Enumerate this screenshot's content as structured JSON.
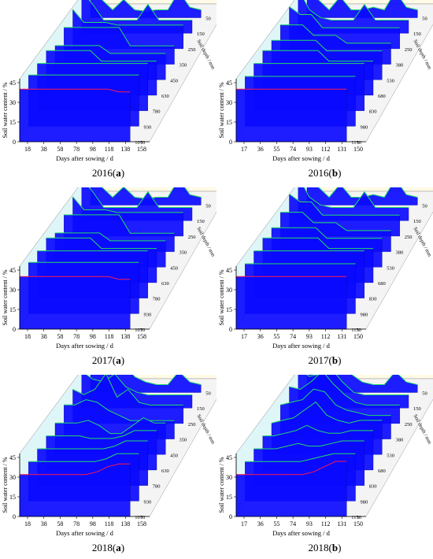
{
  "figure": {
    "panels": [
      {
        "caption_year": "2016",
        "caption_letter": "a"
      },
      {
        "caption_year": "2016",
        "caption_letter": "b"
      },
      {
        "caption_year": "2017",
        "caption_letter": "a"
      },
      {
        "caption_year": "2017",
        "caption_letter": "b"
      },
      {
        "caption_year": "2018",
        "caption_letter": "a"
      },
      {
        "caption_year": "2018",
        "caption_letter": "b"
      }
    ]
  },
  "colors": {
    "front_fill": "#0a0aff",
    "back_panel": "#fffbe6",
    "side_panel": "#dff6f8",
    "line_green": "#22dd66",
    "line_red": "#ff1a4a"
  },
  "chart_data": [
    {
      "type": "area",
      "title": "",
      "xlabel": "Days after sowing / d",
      "ylabel": "Soil water content / %",
      "zlabel": "Soil depth / mm",
      "x_ticks": [
        18,
        38,
        58,
        78,
        98,
        118,
        138,
        158
      ],
      "y_ticks": [
        0,
        15,
        30,
        45
      ],
      "z_ticks": [
        50,
        150,
        250,
        350,
        450,
        630,
        780,
        930,
        1070
      ],
      "ylim": [
        0,
        48
      ],
      "series": [
        {
          "depth": 1070,
          "values": [
            40,
            40,
            40,
            40,
            40,
            40,
            40,
            40,
            40,
            38,
            38
          ]
        },
        {
          "depth": 930,
          "values": [
            39,
            39,
            39,
            39,
            39,
            39,
            39,
            39,
            39,
            39,
            39
          ]
        },
        {
          "depth": 780,
          "values": [
            36,
            36,
            36,
            36,
            36,
            36,
            36,
            36,
            36,
            36,
            36
          ]
        },
        {
          "depth": 630,
          "values": [
            34,
            34,
            34,
            34,
            34,
            26,
            26,
            26,
            26,
            26,
            26
          ]
        },
        {
          "depth": 450,
          "values": [
            26,
            26,
            26,
            26,
            26,
            20,
            20,
            20,
            20,
            20,
            20
          ]
        },
        {
          "depth": 350,
          "values": [
            28,
            28,
            28,
            28,
            28,
            28,
            14,
            14,
            14,
            14,
            14
          ]
        },
        {
          "depth": 250,
          "values": [
            30,
            20,
            20,
            20,
            18,
            18,
            18,
            18,
            18,
            18,
            18
          ]
        },
        {
          "depth": 150,
          "values": [
            32,
            22,
            10,
            10,
            10,
            10,
            22,
            10,
            10,
            10,
            10
          ]
        },
        {
          "depth": 50,
          "values": [
            20,
            14,
            6,
            14,
            6,
            5,
            6,
            6,
            20,
            8,
            6
          ]
        }
      ]
    },
    {
      "type": "area",
      "title": "",
      "xlabel": "Days after sowing / d",
      "ylabel": "Soil water content / %",
      "zlabel": "Soil depth / mm",
      "x_ticks": [
        17,
        36,
        55,
        74,
        93,
        112,
        131,
        150
      ],
      "y_ticks": [
        0,
        15,
        30,
        45
      ],
      "z_ticks": [
        50,
        150,
        250,
        380,
        530,
        680,
        830,
        980,
        1150
      ],
      "ylim": [
        0,
        48
      ],
      "series": [
        {
          "depth": 1150,
          "values": [
            40,
            40,
            40,
            40,
            40,
            40,
            40,
            40,
            40,
            40,
            40
          ]
        },
        {
          "depth": 980,
          "values": [
            38,
            38,
            38,
            38,
            38,
            38,
            38,
            38,
            38,
            38,
            38
          ]
        },
        {
          "depth": 830,
          "values": [
            36,
            36,
            36,
            36,
            36,
            36,
            36,
            36,
            36,
            36,
            36
          ]
        },
        {
          "depth": 680,
          "values": [
            34,
            34,
            34,
            34,
            34,
            34,
            26,
            26,
            26,
            26,
            26
          ]
        },
        {
          "depth": 530,
          "values": [
            30,
            30,
            30,
            30,
            30,
            22,
            22,
            22,
            22,
            22,
            22
          ]
        },
        {
          "depth": 380,
          "values": [
            30,
            30,
            30,
            22,
            22,
            22,
            16,
            16,
            16,
            16,
            16
          ]
        },
        {
          "depth": 250,
          "values": [
            32,
            26,
            26,
            16,
            16,
            16,
            16,
            16,
            16,
            16,
            16
          ]
        },
        {
          "depth": 150,
          "values": [
            34,
            18,
            12,
            10,
            10,
            10,
            22,
            10,
            10,
            10,
            10
          ]
        },
        {
          "depth": 50,
          "values": [
            22,
            14,
            6,
            16,
            6,
            6,
            8,
            6,
            20,
            8,
            6
          ]
        }
      ]
    },
    {
      "type": "area",
      "title": "",
      "xlabel": "Days after sowing / d",
      "ylabel": "Soil water content / %",
      "zlabel": "Soil depth / mm",
      "x_ticks": [
        18,
        38,
        58,
        78,
        98,
        118,
        138,
        158
      ],
      "y_ticks": [
        0,
        15,
        30,
        45
      ],
      "z_ticks": [
        50,
        150,
        250,
        350,
        450,
        630,
        780,
        930,
        1070
      ],
      "ylim": [
        0,
        48
      ],
      "series": [
        {
          "depth": 1070,
          "values": [
            40,
            40,
            40,
            40,
            40,
            40,
            40,
            40,
            40,
            38,
            38
          ]
        },
        {
          "depth": 930,
          "values": [
            39,
            39,
            39,
            39,
            39,
            39,
            39,
            39,
            39,
            39,
            39
          ]
        },
        {
          "depth": 780,
          "values": [
            36,
            36,
            36,
            36,
            36,
            36,
            36,
            36,
            36,
            36,
            36
          ]
        },
        {
          "depth": 630,
          "values": [
            34,
            34,
            34,
            34,
            34,
            26,
            26,
            26,
            26,
            26,
            26
          ]
        },
        {
          "depth": 450,
          "values": [
            26,
            26,
            26,
            26,
            26,
            20,
            20,
            20,
            20,
            20,
            20
          ]
        },
        {
          "depth": 350,
          "values": [
            28,
            28,
            28,
            28,
            28,
            28,
            14,
            14,
            14,
            14,
            14
          ]
        },
        {
          "depth": 250,
          "values": [
            30,
            20,
            20,
            20,
            18,
            18,
            18,
            18,
            18,
            18,
            18
          ]
        },
        {
          "depth": 150,
          "values": [
            32,
            22,
            10,
            10,
            10,
            10,
            22,
            10,
            10,
            10,
            10
          ]
        },
        {
          "depth": 50,
          "values": [
            20,
            14,
            6,
            14,
            6,
            5,
            6,
            6,
            20,
            8,
            6
          ]
        }
      ]
    },
    {
      "type": "area",
      "title": "",
      "xlabel": "Days after sowing / d",
      "ylabel": "Soil water content / %",
      "zlabel": "Soil depth / mm",
      "x_ticks": [
        17,
        36,
        55,
        74,
        93,
        112,
        131,
        150
      ],
      "y_ticks": [
        0,
        15,
        30,
        45
      ],
      "z_ticks": [
        50,
        150,
        250,
        380,
        530,
        680,
        830,
        980,
        1150
      ],
      "ylim": [
        0,
        48
      ],
      "series": [
        {
          "depth": 1150,
          "values": [
            40,
            40,
            40,
            40,
            40,
            40,
            40,
            40,
            40,
            40,
            40
          ]
        },
        {
          "depth": 980,
          "values": [
            38,
            38,
            38,
            38,
            38,
            38,
            38,
            38,
            38,
            38,
            38
          ]
        },
        {
          "depth": 830,
          "values": [
            36,
            36,
            36,
            36,
            36,
            36,
            36,
            36,
            36,
            36,
            36
          ]
        },
        {
          "depth": 680,
          "values": [
            34,
            34,
            34,
            34,
            34,
            34,
            26,
            26,
            26,
            26,
            26
          ]
        },
        {
          "depth": 530,
          "values": [
            30,
            30,
            30,
            30,
            30,
            22,
            22,
            22,
            22,
            22,
            22
          ]
        },
        {
          "depth": 380,
          "values": [
            30,
            30,
            30,
            22,
            22,
            22,
            16,
            16,
            16,
            16,
            16
          ]
        },
        {
          "depth": 250,
          "values": [
            32,
            26,
            26,
            16,
            16,
            16,
            16,
            16,
            16,
            16,
            16
          ]
        },
        {
          "depth": 150,
          "values": [
            34,
            18,
            12,
            10,
            10,
            10,
            22,
            10,
            10,
            10,
            10
          ]
        },
        {
          "depth": 50,
          "values": [
            22,
            14,
            6,
            16,
            6,
            6,
            8,
            6,
            20,
            8,
            6
          ]
        }
      ]
    },
    {
      "type": "area",
      "title": "",
      "xlabel": "Days after sowing / d",
      "ylabel": "Soil water content / %",
      "zlabel": "Soil depth / mm",
      "x_ticks": [
        18,
        38,
        58,
        78,
        98,
        118,
        138,
        158
      ],
      "y_ticks": [
        0,
        15,
        30,
        45
      ],
      "z_ticks": [
        50,
        150,
        250,
        350,
        450,
        630,
        780,
        930,
        1070
      ],
      "ylim": [
        0,
        48
      ],
      "series": [
        {
          "depth": 1070,
          "values": [
            32,
            32,
            32,
            32,
            32,
            32,
            32,
            34,
            38,
            40,
            40
          ]
        },
        {
          "depth": 930,
          "values": [
            30,
            30,
            30,
            30,
            30,
            30,
            30,
            32,
            36,
            36,
            36
          ]
        },
        {
          "depth": 780,
          "values": [
            28,
            28,
            28,
            28,
            28,
            28,
            28,
            30,
            34,
            34,
            34
          ]
        },
        {
          "depth": 630,
          "values": [
            26,
            26,
            26,
            26,
            24,
            24,
            24,
            26,
            30,
            30,
            30
          ]
        },
        {
          "depth": 450,
          "values": [
            24,
            24,
            24,
            26,
            22,
            16,
            16,
            22,
            28,
            24,
            24
          ]
        },
        {
          "depth": 350,
          "values": [
            26,
            26,
            30,
            28,
            22,
            18,
            14,
            14,
            14,
            14,
            14
          ]
        },
        {
          "depth": 250,
          "values": [
            26,
            22,
            26,
            38,
            20,
            26,
            16,
            14,
            14,
            14,
            14
          ]
        },
        {
          "depth": 150,
          "values": [
            28,
            22,
            20,
            26,
            16,
            12,
            10,
            10,
            10,
            10,
            10
          ]
        },
        {
          "depth": 50,
          "values": [
            24,
            20,
            16,
            22,
            12,
            8,
            6,
            6,
            16,
            8,
            6
          ]
        }
      ]
    },
    {
      "type": "area",
      "title": "",
      "xlabel": "Days after sowing / d",
      "ylabel": "Soil water content / %",
      "zlabel": "Soil depth / mm",
      "x_ticks": [
        17,
        36,
        55,
        74,
        93,
        112,
        131,
        150
      ],
      "y_ticks": [
        0,
        15,
        30,
        45
      ],
      "z_ticks": [
        50,
        150,
        250,
        380,
        530,
        680,
        830,
        980,
        1150
      ],
      "ylim": [
        0,
        48
      ],
      "series": [
        {
          "depth": 1150,
          "values": [
            32,
            32,
            32,
            32,
            32,
            32,
            32,
            34,
            38,
            42,
            42
          ]
        },
        {
          "depth": 980,
          "values": [
            30,
            30,
            30,
            30,
            30,
            30,
            32,
            34,
            36,
            36,
            36
          ]
        },
        {
          "depth": 830,
          "values": [
            28,
            28,
            28,
            30,
            32,
            30,
            30,
            32,
            34,
            34,
            34
          ]
        },
        {
          "depth": 680,
          "values": [
            26,
            26,
            28,
            30,
            34,
            30,
            28,
            28,
            30,
            30,
            30
          ]
        },
        {
          "depth": 530,
          "values": [
            24,
            26,
            28,
            34,
            40,
            30,
            26,
            24,
            26,
            26,
            26
          ]
        },
        {
          "depth": 380,
          "values": [
            26,
            28,
            30,
            38,
            36,
            26,
            22,
            20,
            18,
            18,
            18
          ]
        },
        {
          "depth": 250,
          "values": [
            28,
            26,
            32,
            40,
            30,
            22,
            16,
            14,
            14,
            14,
            14
          ]
        },
        {
          "depth": 150,
          "values": [
            30,
            24,
            26,
            30,
            20,
            12,
            10,
            10,
            10,
            10,
            10
          ]
        },
        {
          "depth": 50,
          "values": [
            26,
            22,
            20,
            26,
            14,
            8,
            6,
            6,
            16,
            8,
            6
          ]
        }
      ]
    }
  ]
}
